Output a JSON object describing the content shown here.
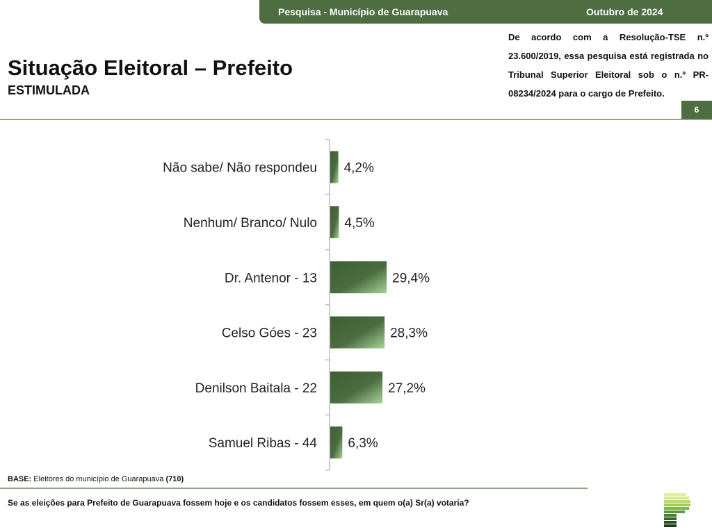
{
  "header": {
    "survey": "Pesquisa - Município de Guarapuava",
    "date": "Outubro de 2024"
  },
  "title": "Situação Eleitoral – Prefeito",
  "subtitle": "ESTIMULADA",
  "registration_note": "De acordo com a Resolução-TSE n.º 23.600/2019, essa pesquisa está registrada no Tribunal Superior Eleitoral sob o n.º PR-08234/2024 para o cargo de Prefeito.",
  "page_number": "6",
  "base": {
    "label": "BASE:",
    "text": " Eleitores do município de Guarapuava ",
    "count": "(710)"
  },
  "question": "Se as eleições para Prefeito de Guarapuava fossem hoje e os candidatos fossem esses, em quem o(a) Sr(a) votaria?",
  "colors": {
    "brand": "#4e6d41",
    "bar_dark": "#3f5f35",
    "bar_light": "#9cc98f"
  },
  "chart_data": {
    "type": "bar",
    "orientation": "horizontal",
    "categories": [
      "Não sabe/ Não respondeu",
      "Nenhum/ Branco/ Nulo",
      "Dr. Antenor - 13",
      "Celso Góes - 23",
      "Denilson Baitala - 22",
      "Samuel Ribas - 44"
    ],
    "values": [
      4.2,
      4.5,
      29.4,
      28.3,
      27.2,
      6.3
    ],
    "labels": [
      "4,2%",
      "4,5%",
      "29,4%",
      "28,3%",
      "27,2%",
      "6,3%"
    ],
    "unit": "%",
    "grid": false
  }
}
